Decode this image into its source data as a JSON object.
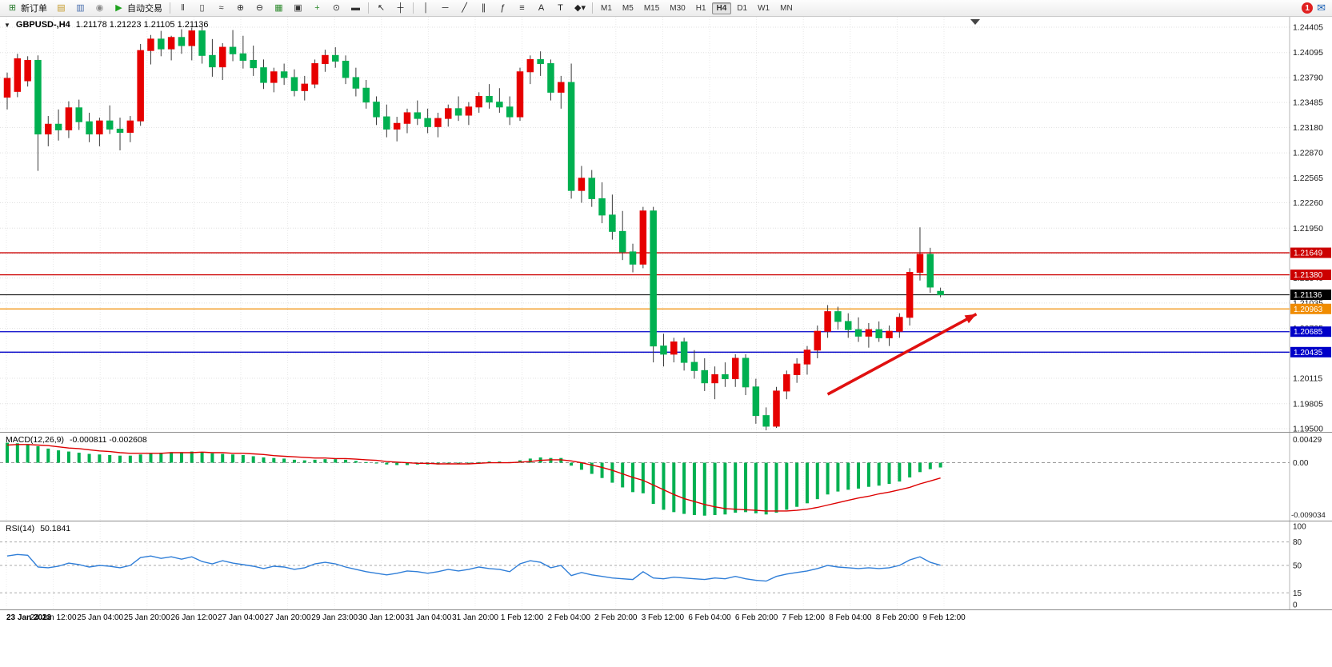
{
  "toolbar": {
    "new_order": {
      "label": "新订单",
      "icon_glyph": "⊞",
      "icon_color": "#2e7d32"
    },
    "left_icons": [
      {
        "name": "metaeditor-icon",
        "glyph": "▤",
        "color": "#c49a2a"
      },
      {
        "name": "market-watch-icon",
        "glyph": "▥",
        "color": "#4a6fae"
      },
      {
        "name": "sound-icon",
        "glyph": "◉",
        "color": "#888888"
      }
    ],
    "auto_trading": {
      "label": "自动交易",
      "icon_glyph": "▶",
      "icon_color": "#1fa31f"
    },
    "main_icons": [
      {
        "name": "bar-chart-icon",
        "glyph": "‖",
        "color": "#333333"
      },
      {
        "name": "candlestick-chart-icon",
        "glyph": "▯",
        "color": "#333333"
      },
      {
        "name": "line-chart-icon",
        "glyph": "≈",
        "color": "#333333"
      },
      {
        "name": "zoom-in-icon",
        "glyph": "⊕",
        "color": "#333333"
      },
      {
        "name": "zoom-out-icon",
        "glyph": "⊖",
        "color": "#333333"
      },
      {
        "name": "grid-icon",
        "glyph": "▦",
        "color": "#2e8b2e"
      },
      {
        "name": "arrange-windows-icon",
        "glyph": "▣",
        "color": "#333333"
      },
      {
        "name": "indicators-icon",
        "glyph": "+",
        "color": "#2e8b2e"
      },
      {
        "name": "period-icon",
        "glyph": "⊙",
        "color": "#333333"
      },
      {
        "name": "templates-icon",
        "glyph": "▬",
        "color": "#333333"
      }
    ],
    "nav_icons": [
      {
        "name": "cursor-icon",
        "glyph": "↖",
        "color": "#222222"
      },
      {
        "name": "crosshair-icon",
        "glyph": "┼",
        "color": "#222222"
      }
    ],
    "draw_icons": [
      {
        "name": "vertical-line-tool-icon",
        "glyph": "│",
        "color": "#222222"
      },
      {
        "name": "horizontal-line-tool-icon",
        "glyph": "─",
        "color": "#222222"
      },
      {
        "name": "trendline-tool-icon",
        "glyph": "╱",
        "color": "#222222"
      },
      {
        "name": "channel-tool-icon",
        "glyph": "∥",
        "color": "#222222"
      },
      {
        "name": "fibonacci-tool-icon",
        "glyph": "ƒ",
        "color": "#222222"
      },
      {
        "name": "objects-tool-icon",
        "glyph": "≡",
        "color": "#222222"
      },
      {
        "name": "text-tool-icon",
        "glyph": "A",
        "color": "#222222"
      },
      {
        "name": "label-tool-icon",
        "glyph": "T",
        "color": "#222222"
      },
      {
        "name": "shapes-tool-icon",
        "glyph": "◆▾",
        "color": "#222222"
      }
    ],
    "timeframes": [
      "M1",
      "M5",
      "M15",
      "M30",
      "H1",
      "H4",
      "D1",
      "W1",
      "MN"
    ],
    "active_timeframe": "H4",
    "notification_count": "1",
    "right_icon_name": "messages-icon",
    "right_icon_glyph": "✉"
  },
  "chart": {
    "title": {
      "expander": "▼",
      "symbol": "GBPUSD-,H4",
      "ohlc": "1.21178 1.21223 1.21105 1.21136"
    },
    "macd": {
      "title": "MACD(12,26,9)",
      "values": "-0.000811 -0.002608",
      "axis": [
        "0.00429",
        "0.00",
        "-0.009034"
      ]
    },
    "rsi": {
      "title": "RSI(14)",
      "value": "50.1841",
      "axis": [
        "100",
        "80",
        "50",
        "15",
        "0"
      ]
    },
    "time_axis": [
      "23 Jan 2023",
      "24 Jan 12:00",
      "25 Jan 04:00",
      "25 Jan 20:00",
      "26 Jan 12:00",
      "27 Jan 04:00",
      "27 Jan 20:00",
      "29 Jan 23:00",
      "30 Jan 12:00",
      "31 Jan 04:00",
      "31 Jan 20:00",
      "1 Feb 12:00",
      "2 Feb 04:00",
      "2 Feb 20:00",
      "3 Feb 12:00",
      "6 Feb 04:00",
      "6 Feb 20:00",
      "7 Feb 12:00",
      "8 Feb 04:00",
      "8 Feb 20:00",
      "9 Feb 12:00"
    ]
  },
  "chart_data": {
    "type": "candlestick",
    "symbol": "GBPUSD",
    "timeframe": "H4",
    "title": "GBPUSD-,H4 1.21178 1.21223 1.21105 1.21136",
    "ohlc_current": {
      "open": 1.21178,
      "high": 1.21223,
      "low": 1.21105,
      "close": 1.21136
    },
    "price_range": [
      1.195,
      1.24405
    ],
    "price_ticks": [
      1.24405,
      1.24095,
      1.2379,
      1.23485,
      1.2318,
      1.2287,
      1.22565,
      1.2226,
      1.2195,
      1.2164,
      1.2134,
      1.21035,
      1.20725,
      1.2042,
      1.20115,
      1.19805,
      1.195
    ],
    "up_color": "#e60000",
    "down_color": "#00b050",
    "color_convention": "red=up, green=down",
    "levels": [
      {
        "price": 1.21649,
        "color": "#cc0000",
        "tag": "1.21649"
      },
      {
        "price": 1.2138,
        "color": "#cc0000",
        "tag": "1.21380"
      },
      {
        "price": 1.21136,
        "color": "#000000",
        "tag": "1.21136",
        "current": true
      },
      {
        "price": 1.20963,
        "color": "#f08c00",
        "tag": "1.20963"
      },
      {
        "price": 1.20685,
        "color": "#0000c8",
        "tag": "1.20685"
      },
      {
        "price": 1.20435,
        "color": "#0000c8",
        "tag": "1.20435"
      }
    ],
    "candles": [
      [
        1.2355,
        1.2385,
        1.234,
        1.2378
      ],
      [
        1.2362,
        1.2408,
        1.2355,
        1.2402
      ],
      [
        1.2375,
        1.2405,
        1.2368,
        1.24
      ],
      [
        1.24,
        1.2406,
        1.2265,
        1.231
      ],
      [
        1.231,
        1.2332,
        1.2295,
        1.2322
      ],
      [
        1.2322,
        1.234,
        1.2302,
        1.2315
      ],
      [
        1.2315,
        1.235,
        1.2305,
        1.2342
      ],
      [
        1.2342,
        1.2352,
        1.2315,
        1.2325
      ],
      [
        1.2325,
        1.2336,
        1.23,
        1.231
      ],
      [
        1.231,
        1.233,
        1.2295,
        1.2326
      ],
      [
        1.2326,
        1.2345,
        1.231,
        1.2316
      ],
      [
        1.2316,
        1.233,
        1.229,
        1.2312
      ],
      [
        1.2312,
        1.2332,
        1.23,
        1.2326
      ],
      [
        1.2326,
        1.242,
        1.232,
        1.2412
      ],
      [
        1.2412,
        1.2431,
        1.2395,
        1.2426
      ],
      [
        1.2426,
        1.2436,
        1.2405,
        1.2414
      ],
      [
        1.2414,
        1.243,
        1.24,
        1.2428
      ],
      [
        1.2428,
        1.2438,
        1.2408,
        1.2418
      ],
      [
        1.2418,
        1.244,
        1.24,
        1.2436
      ],
      [
        1.2436,
        1.2441,
        1.2396,
        1.2406
      ],
      [
        1.2406,
        1.2426,
        1.238,
        1.2392
      ],
      [
        1.2392,
        1.2421,
        1.2376,
        1.2416
      ],
      [
        1.2416,
        1.2437,
        1.2399,
        1.2408
      ],
      [
        1.2408,
        1.243,
        1.239,
        1.24
      ],
      [
        1.24,
        1.2418,
        1.2381,
        1.2391
      ],
      [
        1.2391,
        1.2401,
        1.2365,
        1.2373
      ],
      [
        1.2373,
        1.2391,
        1.2361,
        1.2386
      ],
      [
        1.2386,
        1.2396,
        1.237,
        1.2379
      ],
      [
        1.2379,
        1.2389,
        1.2356,
        1.2363
      ],
      [
        1.2363,
        1.2381,
        1.2351,
        1.2371
      ],
      [
        1.2371,
        1.2401,
        1.2366,
        1.2396
      ],
      [
        1.2396,
        1.2413,
        1.2386,
        1.2406
      ],
      [
        1.2406,
        1.2416,
        1.2391,
        1.2399
      ],
      [
        1.2399,
        1.2406,
        1.2371,
        1.2379
      ],
      [
        1.2379,
        1.2391,
        1.2356,
        1.2366
      ],
      [
        1.2366,
        1.2376,
        1.2341,
        1.2349
      ],
      [
        1.2349,
        1.2356,
        1.2321,
        1.2331
      ],
      [
        1.2331,
        1.2346,
        1.2306,
        1.2316
      ],
      [
        1.2316,
        1.2331,
        1.2301,
        1.2323
      ],
      [
        1.2323,
        1.2341,
        1.2311,
        1.2336
      ],
      [
        1.2336,
        1.2351,
        1.2321,
        1.2329
      ],
      [
        1.2329,
        1.2341,
        1.2311,
        1.2319
      ],
      [
        1.2319,
        1.2336,
        1.2306,
        1.2329
      ],
      [
        1.2329,
        1.2346,
        1.2319,
        1.2341
      ],
      [
        1.2341,
        1.2356,
        1.2326,
        1.2333
      ],
      [
        1.2333,
        1.2349,
        1.2321,
        1.2343
      ],
      [
        1.2343,
        1.2361,
        1.2336,
        1.2356
      ],
      [
        1.2356,
        1.2371,
        1.2341,
        1.2349
      ],
      [
        1.2349,
        1.2366,
        1.2336,
        1.2343
      ],
      [
        1.2343,
        1.2356,
        1.2321,
        1.2331
      ],
      [
        1.2331,
        1.2391,
        1.2326,
        1.2386
      ],
      [
        1.2386,
        1.2406,
        1.2371,
        1.2401
      ],
      [
        1.2401,
        1.2411,
        1.2381,
        1.2396
      ],
      [
        1.2396,
        1.2401,
        1.2351,
        1.2361
      ],
      [
        1.2361,
        1.2381,
        1.2341,
        1.2373
      ],
      [
        1.2373,
        1.2396,
        1.2231,
        1.2241
      ],
      [
        1.2241,
        1.2271,
        1.2226,
        1.2256
      ],
      [
        1.2256,
        1.2266,
        1.2221,
        1.2231
      ],
      [
        1.2231,
        1.2251,
        1.2201,
        1.2211
      ],
      [
        1.2211,
        1.2236,
        1.2181,
        1.2191
      ],
      [
        1.2191,
        1.2216,
        1.2156,
        1.2166
      ],
      [
        1.2166,
        1.2176,
        1.2141,
        1.2151
      ],
      [
        1.2151,
        1.2221,
        1.2146,
        1.2216
      ],
      [
        1.2216,
        1.2221,
        1.2031,
        1.2051
      ],
      [
        1.2051,
        1.2066,
        1.2026,
        1.2041
      ],
      [
        1.2041,
        1.2061,
        1.2031,
        1.2056
      ],
      [
        1.2056,
        1.2061,
        1.2021,
        1.2031
      ],
      [
        1.2031,
        1.2046,
        1.2011,
        1.2021
      ],
      [
        1.2021,
        1.2036,
        1.1996,
        1.2006
      ],
      [
        1.2006,
        1.2026,
        1.1986,
        1.2016
      ],
      [
        1.2016,
        1.2031,
        1.2001,
        1.2011
      ],
      [
        1.2011,
        1.2041,
        1.2001,
        1.2036
      ],
      [
        1.2036,
        1.2041,
        1.1991,
        1.2001
      ],
      [
        1.2001,
        1.2011,
        1.1956,
        1.1966
      ],
      [
        1.1966,
        1.1976,
        1.1948,
        1.1953
      ],
      [
        1.1953,
        1.2001,
        1.1951,
        1.1996
      ],
      [
        1.1996,
        1.2021,
        1.1986,
        1.2016
      ],
      [
        1.2016,
        1.2036,
        1.2006,
        1.2029
      ],
      [
        1.2029,
        1.2051,
        1.2016,
        1.2046
      ],
      [
        1.2046,
        1.2076,
        1.2036,
        1.2069
      ],
      [
        1.2069,
        1.2101,
        1.2061,
        1.2093
      ],
      [
        1.2093,
        1.2099,
        1.2071,
        1.2081
      ],
      [
        1.2081,
        1.2091,
        1.2061,
        1.2071
      ],
      [
        1.2071,
        1.2086,
        1.2056,
        1.2063
      ],
      [
        1.2063,
        1.2079,
        1.2049,
        1.2071
      ],
      [
        1.2071,
        1.2081,
        1.2056,
        1.2061
      ],
      [
        1.2061,
        1.2076,
        1.2051,
        1.2069
      ],
      [
        1.2069,
        1.2091,
        1.2061,
        1.2086
      ],
      [
        1.2086,
        1.2146,
        1.2076,
        1.2141
      ],
      [
        1.2141,
        1.2196,
        1.2131,
        1.2163
      ],
      [
        1.2163,
        1.2171,
        1.2116,
        1.2123
      ],
      [
        1.21178,
        1.21223,
        1.21105,
        1.21136
      ]
    ],
    "macd": {
      "range": [
        -0.009034,
        0.00429
      ],
      "histogram": [
        0.0034,
        0.0033,
        0.0031,
        0.0028,
        0.0024,
        0.0021,
        0.0019,
        0.0017,
        0.0015,
        0.0014,
        0.0013,
        0.0012,
        0.0012,
        0.0014,
        0.0016,
        0.0017,
        0.0018,
        0.0018,
        0.0019,
        0.0018,
        0.0016,
        0.0015,
        0.0014,
        0.0013,
        0.0011,
        0.0009,
        0.0008,
        0.0007,
        0.0005,
        0.0004,
        0.0005,
        0.0006,
        0.0006,
        0.0005,
        0.0003,
        0.0001,
        -0.0001,
        -0.0003,
        -0.0004,
        -0.0004,
        -0.0003,
        -0.0003,
        -0.0003,
        -0.0002,
        -0.0002,
        -0.0001,
        0.0001,
        0.0002,
        0.0002,
        0.0001,
        0.0004,
        0.0007,
        0.0009,
        0.0008,
        0.0008,
        -0.0005,
        -0.0012,
        -0.0019,
        -0.0026,
        -0.0034,
        -0.0042,
        -0.005,
        -0.0052,
        -0.007,
        -0.008,
        -0.0084,
        -0.0087,
        -0.0089,
        -0.009,
        -0.0089,
        -0.0088,
        -0.0085,
        -0.0084,
        -0.0086,
        -0.0088,
        -0.0085,
        -0.008,
        -0.0075,
        -0.0069,
        -0.0062,
        -0.0054,
        -0.0049,
        -0.0046,
        -0.0044,
        -0.0041,
        -0.0039,
        -0.0036,
        -0.0032,
        -0.0025,
        -0.0016,
        -0.0011,
        -0.000811
      ],
      "signal": [
        0.003,
        0.0031,
        0.0031,
        0.003,
        0.0029,
        0.0027,
        0.0025,
        0.0024,
        0.0022,
        0.002,
        0.0019,
        0.0017,
        0.0016,
        0.0016,
        0.0016,
        0.0016,
        0.0017,
        0.0017,
        0.0017,
        0.0018,
        0.0017,
        0.0017,
        0.0016,
        0.0016,
        0.0015,
        0.0014,
        0.0012,
        0.0011,
        0.001,
        0.0009,
        0.0008,
        0.0008,
        0.0007,
        0.0007,
        0.0006,
        0.0005,
        0.0004,
        0.0002,
        0.0001,
        0.0,
        -0.0001,
        -0.0001,
        -0.0002,
        -0.0002,
        -0.0002,
        -0.0002,
        -0.0001,
        0.0,
        0.0,
        0.0,
        0.0001,
        0.0002,
        0.0004,
        0.0005,
        0.0005,
        0.0003,
        0.0,
        -0.0004,
        -0.0008,
        -0.0013,
        -0.0019,
        -0.0025,
        -0.003,
        -0.0038,
        -0.0046,
        -0.0054,
        -0.0061,
        -0.0066,
        -0.0071,
        -0.0075,
        -0.0078,
        -0.0079,
        -0.008,
        -0.0081,
        -0.0082,
        -0.0082,
        -0.0082,
        -0.0081,
        -0.0079,
        -0.0076,
        -0.0072,
        -0.0068,
        -0.0064,
        -0.006,
        -0.0057,
        -0.0053,
        -0.005,
        -0.0046,
        -0.0042,
        -0.0036,
        -0.0031,
        -0.002608
      ],
      "hist_color": "#00b050",
      "signal_color": "#dd0000"
    },
    "rsi": {
      "range": [
        0,
        100
      ],
      "levels": [
        80,
        50,
        15
      ],
      "values": [
        62,
        64,
        63,
        48,
        47,
        49,
        53,
        51,
        48,
        50,
        49,
        47,
        50,
        60,
        62,
        59,
        61,
        58,
        61,
        55,
        52,
        56,
        53,
        51,
        49,
        46,
        49,
        48,
        45,
        47,
        52,
        54,
        52,
        48,
        45,
        42,
        40,
        38,
        40,
        43,
        42,
        40,
        42,
        45,
        43,
        45,
        48,
        46,
        45,
        42,
        52,
        56,
        54,
        47,
        50,
        37,
        41,
        38,
        36,
        34,
        33,
        32,
        42,
        34,
        33,
        35,
        34,
        33,
        32,
        34,
        33,
        36,
        33,
        31,
        30,
        36,
        39,
        41,
        43,
        46,
        50,
        48,
        47,
        46,
        47,
        46,
        47,
        50,
        57,
        61,
        54,
        50.18
      ],
      "line_color": "#2f7ed8"
    },
    "annotation": {
      "type": "arrow",
      "color": "#e01010",
      "from": {
        "index": 80,
        "price": 1.1992
      },
      "to": {
        "index": 94.5,
        "price": 1.209
      }
    }
  }
}
